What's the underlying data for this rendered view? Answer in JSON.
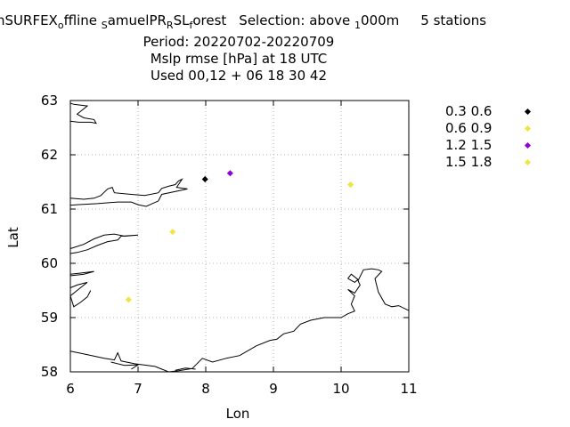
{
  "title": {
    "line1_prefix": "h",
    "line1_run": "SURFEX",
    "line1_sub1": "o",
    "line1_after1": "ffline",
    "line1_sub2": "S",
    "line1_after2": "amuelPR",
    "line1_sub3": "R",
    "line1_after3": "SL",
    "line1_sub4": "f",
    "line1_after4": "orest",
    "selection_text": "Selection: above",
    "selection_sub": "1",
    "selection_after": "000m",
    "stations": "5 stations",
    "period": "Period: 20220702-20220709",
    "metric": "Mslp rmse [hPa] at  18 UTC",
    "used": "Used  00,12  + 06 18 30 42"
  },
  "chart_data": {
    "type": "scatter",
    "xlabel": "Lon",
    "ylabel": "Lat",
    "xlim": [
      6,
      11
    ],
    "ylim": [
      58,
      63
    ],
    "xticks": [
      "6",
      "7",
      "8",
      "9",
      "10",
      "11"
    ],
    "yticks": [
      "58",
      "59",
      "60",
      "61",
      "62",
      "63"
    ],
    "grid": true,
    "legend_position": "top-right outside",
    "series": [
      {
        "name": "0.3 0.6",
        "color": "#000000",
        "points": [
          [
            7.99,
            61.55
          ]
        ]
      },
      {
        "name": "0.6 0.9",
        "color": "#f0e442",
        "points": [
          [
            7.51,
            60.58
          ],
          [
            6.86,
            59.33
          ]
        ]
      },
      {
        "name": "1.2 1.5",
        "color": "#9400d3",
        "points": [
          [
            8.36,
            61.66
          ]
        ]
      },
      {
        "name": "1.5 1.8",
        "color": "#f0e442",
        "points": [
          [
            10.14,
            61.45
          ]
        ]
      }
    ]
  },
  "coastline": [
    [
      [
        6.0,
        62.62
      ],
      [
        6.12,
        62.6
      ],
      [
        6.3,
        62.6
      ],
      [
        6.38,
        62.58
      ],
      [
        6.35,
        62.65
      ],
      [
        6.2,
        62.68
      ],
      [
        6.1,
        62.75
      ],
      [
        6.25,
        62.9
      ],
      [
        6.05,
        62.93
      ],
      [
        6.0,
        62.95
      ]
    ],
    [
      [
        6.0,
        61.2
      ],
      [
        6.2,
        61.18
      ],
      [
        6.35,
        61.2
      ],
      [
        6.45,
        61.25
      ],
      [
        6.55,
        61.37
      ],
      [
        6.62,
        61.4
      ],
      [
        6.65,
        61.3
      ],
      [
        6.9,
        61.27
      ],
      [
        7.1,
        61.25
      ],
      [
        7.3,
        61.3
      ],
      [
        7.35,
        61.38
      ],
      [
        7.45,
        61.42
      ],
      [
        7.55,
        61.45
      ],
      [
        7.6,
        61.52
      ],
      [
        7.65,
        61.55
      ],
      [
        7.57,
        61.4
      ],
      [
        7.73,
        61.37
      ],
      [
        7.35,
        61.27
      ],
      [
        7.3,
        61.15
      ],
      [
        7.12,
        61.05
      ],
      [
        7.0,
        61.08
      ],
      [
        6.9,
        61.13
      ],
      [
        6.7,
        61.13
      ],
      [
        6.4,
        61.1
      ],
      [
        6.1,
        61.08
      ],
      [
        6.0,
        61.07
      ]
    ],
    [
      [
        6.0,
        60.27
      ],
      [
        6.2,
        60.35
      ],
      [
        6.35,
        60.45
      ],
      [
        6.5,
        60.52
      ],
      [
        6.65,
        60.54
      ],
      [
        6.8,
        60.5
      ],
      [
        7.0,
        60.52
      ],
      [
        6.75,
        60.5
      ],
      [
        6.7,
        60.43
      ],
      [
        6.55,
        60.4
      ],
      [
        6.4,
        60.33
      ],
      [
        6.25,
        60.25
      ],
      [
        6.1,
        60.2
      ],
      [
        6.0,
        60.18
      ]
    ],
    [
      [
        6.0,
        59.8
      ],
      [
        6.15,
        59.82
      ],
      [
        6.35,
        59.85
      ],
      [
        6.2,
        59.8
      ],
      [
        6.0,
        59.77
      ]
    ],
    [
      [
        6.0,
        59.55
      ],
      [
        6.1,
        59.6
      ],
      [
        6.25,
        59.65
      ],
      [
        6.1,
        59.5
      ],
      [
        6.0,
        59.4
      ],
      [
        6.05,
        59.2
      ],
      [
        6.15,
        59.28
      ],
      [
        6.25,
        59.38
      ],
      [
        6.3,
        59.5
      ]
    ],
    [
      [
        6.0,
        58.38
      ],
      [
        6.2,
        58.33
      ],
      [
        6.5,
        58.25
      ],
      [
        6.65,
        58.22
      ],
      [
        6.7,
        58.35
      ],
      [
        6.75,
        58.2
      ],
      [
        6.95,
        58.15
      ],
      [
        7.25,
        58.1
      ],
      [
        7.45,
        58.0
      ],
      [
        7.6,
        58.02
      ],
      [
        7.8,
        58.06
      ],
      [
        7.95,
        58.25
      ],
      [
        8.1,
        58.18
      ],
      [
        8.3,
        58.25
      ],
      [
        8.5,
        58.3
      ],
      [
        8.75,
        58.48
      ],
      [
        8.95,
        58.58
      ],
      [
        9.05,
        58.6
      ],
      [
        9.15,
        58.7
      ],
      [
        9.3,
        58.75
      ],
      [
        9.4,
        58.88
      ],
      [
        9.55,
        58.95
      ],
      [
        9.75,
        59.0
      ],
      [
        10.0,
        59.0
      ],
      [
        10.1,
        59.07
      ],
      [
        10.2,
        59.12
      ],
      [
        10.15,
        59.25
      ],
      [
        10.2,
        59.4
      ],
      [
        10.1,
        59.52
      ],
      [
        10.2,
        59.45
      ],
      [
        10.28,
        59.6
      ],
      [
        10.25,
        59.68
      ],
      [
        10.33,
        59.88
      ],
      [
        10.45,
        59.9
      ],
      [
        10.55,
        59.88
      ],
      [
        10.6,
        59.85
      ],
      [
        10.5,
        59.72
      ],
      [
        10.55,
        59.47
      ],
      [
        10.65,
        59.25
      ],
      [
        10.75,
        59.2
      ],
      [
        10.85,
        59.22
      ],
      [
        11.0,
        59.13
      ]
    ],
    [
      [
        6.6,
        58.18
      ],
      [
        6.8,
        58.12
      ],
      [
        7.0,
        58.13
      ],
      [
        6.9,
        58.05
      ]
    ],
    [
      [
        7.55,
        58.03
      ],
      [
        7.7,
        58.07
      ],
      [
        7.85,
        58.05
      ]
    ],
    [
      [
        10.1,
        59.72
      ],
      [
        10.2,
        59.65
      ],
      [
        10.25,
        59.7
      ],
      [
        10.15,
        59.8
      ],
      [
        10.1,
        59.72
      ]
    ]
  ]
}
